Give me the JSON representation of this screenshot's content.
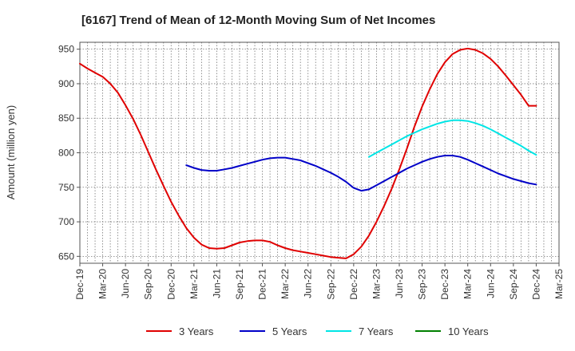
{
  "chart_data": {
    "type": "line",
    "title": "[6167]  Trend of Mean of 12-Month Moving Sum of Net Incomes",
    "xlabel": "",
    "ylabel": "Amount (million yen)",
    "ylim": [
      640,
      960
    ],
    "yticks": [
      650,
      700,
      750,
      800,
      850,
      900,
      950
    ],
    "xticks": [
      "Dec-19",
      "Mar-20",
      "Jun-20",
      "Sep-20",
      "Dec-20",
      "Mar-21",
      "Jun-21",
      "Sep-21",
      "Dec-21",
      "Mar-22",
      "Jun-22",
      "Sep-22",
      "Dec-22",
      "Mar-23",
      "Jun-23",
      "Sep-23",
      "Dec-23",
      "Mar-24",
      "Jun-24",
      "Sep-24",
      "Dec-24",
      "Mar-25"
    ],
    "grid": true,
    "legend_position": "bottom",
    "colors": {
      "3 Years": "#e00000",
      "5 Years": "#0000c8",
      "7 Years": "#00e5e5",
      "10 Years": "#008000"
    },
    "series": [
      {
        "name": "3 Years",
        "x": [
          "Dec-19",
          "Jan-20",
          "Feb-20",
          "Mar-20",
          "Apr-20",
          "May-20",
          "Jun-20",
          "Jul-20",
          "Aug-20",
          "Sep-20",
          "Oct-20",
          "Nov-20",
          "Dec-20",
          "Jan-21",
          "Feb-21",
          "Mar-21",
          "Apr-21",
          "May-21",
          "Jun-21",
          "Jul-21",
          "Aug-21",
          "Sep-21",
          "Oct-21",
          "Nov-21",
          "Dec-21",
          "Jan-22",
          "Feb-22",
          "Mar-22",
          "Apr-22",
          "May-22",
          "Jun-22",
          "Jul-22",
          "Aug-22",
          "Sep-22",
          "Oct-22",
          "Nov-22",
          "Dec-22",
          "Jan-23",
          "Feb-23",
          "Mar-23",
          "Apr-23",
          "May-23",
          "Jun-23",
          "Jul-23",
          "Aug-23",
          "Sep-23",
          "Oct-23",
          "Nov-23",
          "Dec-23",
          "Jan-24",
          "Feb-24",
          "Mar-24",
          "Apr-24",
          "May-24",
          "Jun-24",
          "Jul-24",
          "Aug-24",
          "Sep-24",
          "Oct-24",
          "Nov-24",
          "Dec-24"
        ],
        "values": [
          929,
          922,
          916,
          910,
          900,
          887,
          869,
          849,
          826,
          801,
          776,
          752,
          729,
          709,
          691,
          677,
          667,
          662,
          661,
          662,
          666,
          670,
          672,
          673,
          673,
          671,
          666,
          662,
          659,
          657,
          655,
          653,
          651,
          649,
          648,
          647,
          653,
          664,
          680,
          700,
          723,
          748,
          776,
          806,
          838,
          867,
          892,
          914,
          931,
          943,
          949,
          951,
          949,
          944,
          936,
          925,
          912,
          898,
          884,
          868,
          868
        ],
        "y": [
          929,
          922,
          916,
          910,
          900,
          887,
          869,
          849,
          826,
          801,
          776,
          752,
          729,
          709,
          691,
          677,
          667,
          662,
          661,
          662,
          666,
          670,
          672,
          673,
          673,
          671,
          666,
          662,
          659,
          657,
          655,
          653,
          651,
          649,
          648,
          647,
          653,
          664,
          680,
          700,
          723,
          748,
          776,
          806,
          838,
          867,
          892,
          914,
          931,
          943,
          949,
          951,
          949,
          944,
          936,
          925,
          912,
          898,
          884,
          868,
          868
        ]
      },
      {
        "name": "5 Years",
        "x": [
          "Feb-21",
          "Mar-21",
          "Apr-21",
          "May-21",
          "Jun-21",
          "Jul-21",
          "Aug-21",
          "Sep-21",
          "Oct-21",
          "Nov-21",
          "Dec-21",
          "Jan-22",
          "Feb-22",
          "Mar-22",
          "Apr-22",
          "May-22",
          "Jun-22",
          "Jul-22",
          "Aug-22",
          "Sep-22",
          "Oct-22",
          "Nov-22",
          "Dec-22",
          "Jan-23",
          "Feb-23",
          "Mar-23",
          "Apr-23",
          "May-23",
          "Jun-23",
          "Jul-23",
          "Aug-23",
          "Sep-23",
          "Oct-23",
          "Nov-23",
          "Dec-23",
          "Jan-24",
          "Feb-24",
          "Mar-24",
          "Apr-24",
          "May-24",
          "Jun-24",
          "Jul-24",
          "Aug-24",
          "Sep-24",
          "Oct-24",
          "Nov-24",
          "Dec-24"
        ],
        "y": [
          782,
          778,
          775,
          774,
          774,
          776,
          778,
          781,
          784,
          787,
          790,
          792,
          793,
          793,
          791,
          789,
          785,
          781,
          776,
          771,
          765,
          758,
          749,
          745,
          747,
          753,
          759,
          765,
          771,
          777,
          782,
          787,
          791,
          794,
          796,
          796,
          794,
          790,
          785,
          780,
          775,
          770,
          766,
          762,
          759,
          756,
          754
        ]
      },
      {
        "name": "7 Years",
        "x": [
          "Feb-23",
          "Mar-23",
          "Apr-23",
          "May-23",
          "Jun-23",
          "Jul-23",
          "Aug-23",
          "Sep-23",
          "Oct-23",
          "Nov-23",
          "Dec-23",
          "Jan-24",
          "Feb-24",
          "Mar-24",
          "Apr-24",
          "May-24",
          "Jun-24",
          "Jul-24",
          "Aug-24",
          "Sep-24",
          "Oct-24",
          "Nov-24",
          "Dec-24"
        ],
        "y": [
          794,
          800,
          806,
          812,
          818,
          824,
          829,
          834,
          838,
          842,
          845,
          847,
          847,
          846,
          843,
          839,
          834,
          828,
          822,
          816,
          810,
          803,
          797
        ]
      },
      {
        "name": "10 Years",
        "x": [],
        "y": []
      }
    ]
  }
}
